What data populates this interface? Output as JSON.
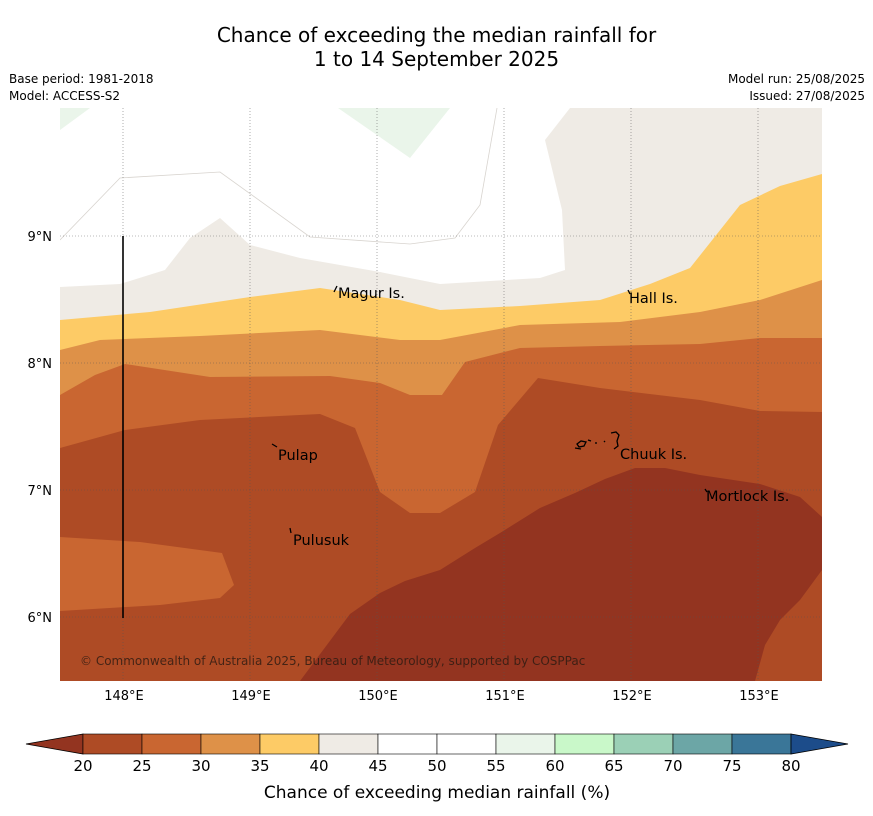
{
  "title": {
    "line1": "Chance of exceeding the median rainfall for",
    "line2": "1 to 14 September 2025"
  },
  "meta_left": {
    "base_period": "Base period: 1981-2018",
    "model": "Model: ACCESS-S2"
  },
  "meta_right": {
    "model_run": "Model run: 25/08/2025",
    "issued": "Issued: 27/08/2025"
  },
  "map": {
    "lon_labels": [
      "148°E",
      "149°E",
      "150°E",
      "151°E",
      "152°E",
      "153°E"
    ],
    "lat_labels": [
      "9°N",
      "8°N",
      "7°N",
      "6°N"
    ],
    "places": [
      "Magur Is.",
      "Hall Is.",
      "Pulap",
      "Chuuk Is.",
      "Mortlock Is.",
      "Pulusuk"
    ],
    "copyright": "© Commonwealth of Australia 2025, Bureau of Meteorology, supported by COSPPac"
  },
  "colorbar": {
    "ticks": [
      "20",
      "25",
      "30",
      "35",
      "40",
      "45",
      "50",
      "55",
      "60",
      "65",
      "70",
      "75",
      "80"
    ],
    "colors": [
      "#ae4b25",
      "#c96631",
      "#de9148",
      "#fdcb66",
      "#efebe5",
      "#ffffff",
      "#ffffff",
      "#eaf5ea",
      "#c9f8c9",
      "#9bd0b6",
      "#6ca6a6",
      "#3a7698"
    ],
    "under_color": "#933420",
    "over_color": "#1c4c8a",
    "label": "Chance of exceeding median rainfall (%)"
  }
}
